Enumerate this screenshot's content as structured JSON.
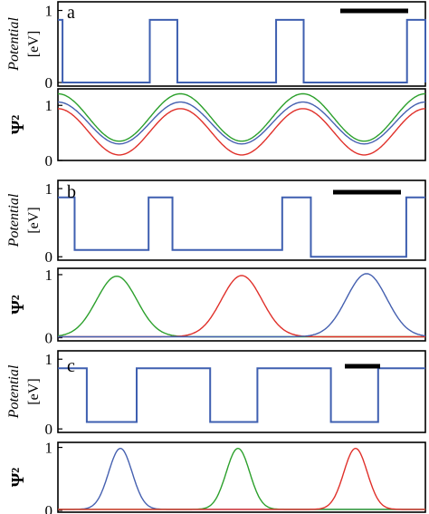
{
  "chart_data": [
    {
      "panel": "a",
      "type": "line",
      "potential": {
        "ylabel_top": "Potential",
        "ylabel_bottom": "[eV]",
        "yticks": [
          "0",
          "1"
        ],
        "ylim": [
          -0.05,
          1.12
        ],
        "steps": [
          [
            0,
            0.87
          ],
          [
            2,
            0
          ],
          [
            40,
            0.87
          ],
          [
            52,
            0
          ],
          [
            95,
            0.87
          ],
          [
            107,
            0
          ],
          [
            152,
            0.87
          ],
          [
            160,
            0
          ]
        ],
        "xmax": 160,
        "scale_bar_color": "#000000"
      },
      "psi2": {
        "ylabel": "Ψ²",
        "yticks": [
          "0",
          "1"
        ],
        "ylim": [
          0,
          1.3
        ],
        "series": [
          {
            "color": "#2ca02c",
            "mean": 0.78,
            "amp": 0.43,
            "phase": 0.2
          },
          {
            "color": "#4560b0",
            "mean": 0.68,
            "amp": 0.38,
            "phase": 0.2
          },
          {
            "color": "#e0302a",
            "mean": 0.52,
            "amp": 0.42,
            "phase": 0.2
          }
        ],
        "periods": 3
      }
    },
    {
      "panel": "b",
      "type": "line",
      "potential": {
        "ylabel_top": "Potential",
        "ylabel_bottom": "[eV]",
        "yticks": [
          "0",
          "1"
        ],
        "ylim": [
          -0.05,
          1.12
        ],
        "steps": [
          [
            0,
            0.87
          ],
          [
            7,
            0.1
          ],
          [
            38,
            0.87
          ],
          [
            48,
            0.1
          ],
          [
            94,
            0.87
          ],
          [
            106,
            0.0
          ],
          [
            146,
            0.87
          ],
          [
            154,
            0.87
          ]
        ],
        "xmax": 154,
        "scale_bar_color": "#000000"
      },
      "psi2": {
        "ylabel": "Ψ²",
        "yticks": [
          "0",
          "1"
        ],
        "ylim": [
          -0.05,
          1.1
        ],
        "peaks": [
          {
            "color": "#2ca02c",
            "center": 0.16,
            "width": 0.055,
            "height": 0.96
          },
          {
            "color": "#e0302a",
            "center": 0.5,
            "width": 0.055,
            "height": 0.97
          },
          {
            "color": "#4560b0",
            "center": 0.84,
            "width": 0.055,
            "height": 1.0
          }
        ]
      }
    },
    {
      "panel": "c",
      "type": "line",
      "potential": {
        "ylabel_top": "Potential",
        "ylabel_bottom": "[eV]",
        "yticks": [
          "0",
          "1"
        ],
        "ylim": [
          -0.05,
          1.12
        ],
        "steps": [
          [
            0,
            0.87
          ],
          [
            11,
            0.1
          ],
          [
            30,
            0.87
          ],
          [
            58,
            0.1
          ],
          [
            76,
            0.87
          ],
          [
            104,
            0.1
          ],
          [
            122,
            0.87
          ],
          [
            140,
            0.87
          ]
        ],
        "xmax": 140,
        "scale_bar_color": "#000000"
      },
      "psi2": {
        "ylabel": "Ψ²",
        "yticks": [
          "0",
          "1"
        ],
        "ylim": [
          -0.03,
          1.08
        ],
        "peaks": [
          {
            "color": "#4560b0",
            "center": 0.17,
            "width": 0.032,
            "height": 0.97
          },
          {
            "color": "#2ca02c",
            "center": 0.49,
            "width": 0.032,
            "height": 0.97
          },
          {
            "color": "#e0302a",
            "center": 0.81,
            "width": 0.032,
            "height": 0.97
          }
        ]
      }
    }
  ]
}
